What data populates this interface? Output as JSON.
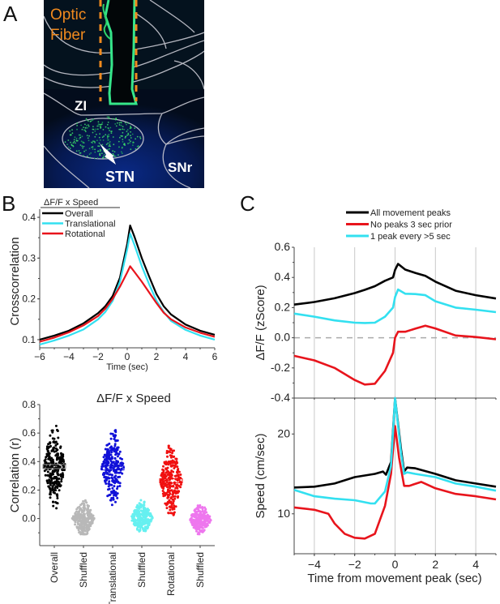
{
  "panels": {
    "A": {
      "letter": "A",
      "labels": {
        "optic_fiber_line1": "Optic",
        "optic_fiber_line2": "Fiber",
        "zi": "ZI",
        "stn": "STN",
        "snr": "SNr"
      },
      "colors": {
        "background": "#04121e",
        "fluorescence": "#2fd36b",
        "outline": "#c9c9d2",
        "fiber_outline": "#f08a1e",
        "label": "#ffffff"
      }
    },
    "B": {
      "letter": "B"
    },
    "C": {
      "letter": "C"
    }
  },
  "chart_data": [
    {
      "id": "B-crosscorrelation",
      "type": "line",
      "title": "ΔF/F  x   Speed",
      "xlabel": "Time (sec)",
      "ylabel": "Crosscorrelation",
      "xlim": [
        -6,
        6
      ],
      "ylim": [
        0.08,
        0.42
      ],
      "xticks": [
        -6,
        -4,
        -2,
        0,
        2,
        4,
        6
      ],
      "xtick_labels": [
        "−6",
        "−4",
        "−2",
        "0",
        "2",
        "4",
        "6"
      ],
      "yticks": [
        0.1,
        0.2,
        0.3,
        0.4
      ],
      "ytick_labels": [
        "0.1",
        "0.2",
        "0.3",
        "0.4"
      ],
      "legend": "top-left",
      "grid": false,
      "x": [
        -6,
        -5,
        -4,
        -3,
        -2,
        -1.5,
        -1,
        -0.5,
        0,
        0.2,
        0.5,
        1,
        1.5,
        2,
        2.5,
        3,
        4,
        5,
        6
      ],
      "series": [
        {
          "name": "Overall",
          "color": "#000000",
          "values": [
            0.1,
            0.11,
            0.122,
            0.14,
            0.165,
            0.182,
            0.207,
            0.252,
            0.335,
            0.38,
            0.352,
            0.3,
            0.255,
            0.212,
            0.182,
            0.162,
            0.137,
            0.122,
            0.112
          ]
        },
        {
          "name": "Translational",
          "color": "#33e0f0",
          "values": [
            0.088,
            0.098,
            0.11,
            0.125,
            0.15,
            0.168,
            0.195,
            0.242,
            0.322,
            0.36,
            0.332,
            0.28,
            0.236,
            0.196,
            0.168,
            0.146,
            0.124,
            0.11,
            0.1
          ]
        },
        {
          "name": "Rotational",
          "color": "#e8141c",
          "values": [
            0.095,
            0.105,
            0.118,
            0.135,
            0.158,
            0.176,
            0.2,
            0.23,
            0.265,
            0.28,
            0.266,
            0.242,
            0.216,
            0.19,
            0.166,
            0.15,
            0.13,
            0.117,
            0.107
          ]
        }
      ]
    },
    {
      "id": "B-correlation-scatter",
      "type": "scatter",
      "title": "ΔF/F  x  Speed",
      "xlabel": "",
      "ylabel": "Correlation (r)",
      "ylim": [
        -0.19,
        0.8
      ],
      "yticks": [
        0.0,
        0.2,
        0.4,
        0.6,
        0.8
      ],
      "ytick_labels": [
        "0.0",
        "0.2",
        "0.4",
        "0.6",
        "0.8"
      ],
      "grid": false,
      "categories": [
        "Overall",
        "Shuffled",
        "Translational",
        "Shuffled",
        "Rotational",
        "Shuffled"
      ],
      "series": [
        {
          "name": "Overall",
          "color": "#000000",
          "mean": 0.365,
          "min": 0.03,
          "max": 0.65,
          "n": 260
        },
        {
          "name": "Shuffled (Overall)",
          "color": "#b8b8b8",
          "mean": 0.0,
          "min": -0.11,
          "max": 0.15,
          "n": 260
        },
        {
          "name": "Translational",
          "color": "#1010d8",
          "mean": 0.355,
          "min": 0.02,
          "max": 0.62,
          "n": 260
        },
        {
          "name": "Shuffled (Translational)",
          "color": "#66f0f0",
          "mean": 0.005,
          "min": -0.1,
          "max": 0.14,
          "n": 260
        },
        {
          "name": "Rotational",
          "color": "#f01010",
          "mean": 0.265,
          "min": -0.04,
          "max": 0.51,
          "n": 260
        },
        {
          "name": "Shuffled (Rotational)",
          "color": "#ee77ee",
          "mean": -0.005,
          "min": -0.11,
          "max": 0.12,
          "n": 260
        }
      ]
    },
    {
      "id": "C-dff",
      "type": "line",
      "title": "",
      "xlabel": "",
      "ylabel": "ΔF/F (zScore)",
      "xlim": [
        -5,
        5
      ],
      "ylim": [
        -0.4,
        0.6
      ],
      "yticks": [
        -0.4,
        -0.2,
        0.0,
        0.2,
        0.4,
        0.6
      ],
      "ytick_labels": [
        "-0.4",
        "-0.2",
        "0.0",
        "0.2",
        "0.4",
        "0.6"
      ],
      "xgrid": [
        -4,
        -2,
        0,
        2,
        4
      ],
      "zero_line": true,
      "legend": "top-center",
      "x": [
        -5,
        -4,
        -3,
        -2,
        -1.5,
        -1,
        -0.5,
        -0.1,
        0,
        0.15,
        0.5,
        1,
        1.5,
        2,
        3,
        4,
        5
      ],
      "series": [
        {
          "name": "All movement peaks",
          "color": "#000000",
          "values": [
            0.22,
            0.237,
            0.262,
            0.296,
            0.318,
            0.342,
            0.378,
            0.4,
            0.45,
            0.49,
            0.452,
            0.43,
            0.41,
            0.372,
            0.312,
            0.282,
            0.26
          ]
        },
        {
          "name": "No peaks 3 sec prior",
          "color": "#e8141c",
          "values": [
            -0.12,
            -0.15,
            -0.2,
            -0.28,
            -0.31,
            -0.305,
            -0.22,
            -0.1,
            0.0,
            0.04,
            0.04,
            0.06,
            0.08,
            0.062,
            0.015,
            0.005,
            -0.01
          ]
        },
        {
          "name": "1 peak every >5 sec",
          "color": "#33e0f0",
          "values": [
            0.16,
            0.14,
            0.115,
            0.1,
            0.098,
            0.1,
            0.14,
            0.2,
            0.27,
            0.32,
            0.292,
            0.29,
            0.282,
            0.242,
            0.2,
            0.186,
            0.17
          ]
        }
      ]
    },
    {
      "id": "C-speed",
      "type": "line",
      "title": "",
      "xlabel": "Time from movement peak (sec)",
      "ylabel": "Speed (cm/sec)",
      "xlim": [
        -5,
        5
      ],
      "ylim": [
        5,
        24.5
      ],
      "xticks": [
        -4,
        -2,
        0,
        2,
        4
      ],
      "xtick_labels": [
        "−4",
        "−2",
        "0",
        "2",
        "4"
      ],
      "yticks": [
        10,
        20
      ],
      "ytick_labels": [
        "10",
        "20"
      ],
      "xgrid": [
        -4,
        -2,
        0,
        2,
        4
      ],
      "series": [
        {
          "name": "All movement peaks",
          "color": "#000000",
          "x": [
            -5,
            -4,
            -3,
            -2,
            -1,
            -0.6,
            -0.45,
            -0.2,
            0,
            0.3,
            0.45,
            0.6,
            1,
            2,
            3,
            4,
            5
          ],
          "values": [
            13.3,
            13.4,
            13.8,
            14.6,
            15.0,
            15.3,
            14.9,
            16.5,
            24.5,
            18.0,
            15.3,
            15.8,
            15.7,
            15.0,
            14.2,
            13.8,
            13.4
          ]
        },
        {
          "name": "No peaks 3 sec prior",
          "color": "#e8141c",
          "x": [
            -5,
            -4,
            -3.3,
            -3,
            -2.5,
            -2,
            -1.5,
            -1,
            -0.5,
            -0.2,
            0,
            0.2,
            0.45,
            0.7,
            1.3,
            2,
            3,
            4,
            5
          ],
          "values": [
            10.8,
            10.5,
            10.0,
            8.8,
            7.5,
            7.0,
            6.9,
            7.5,
            11.0,
            15.0,
            21.0,
            17.0,
            13.5,
            13.5,
            14.0,
            13.2,
            12.5,
            12.2,
            11.8
          ]
        },
        {
          "name": "1 peak every >5 sec",
          "color": "#33e0f0",
          "x": [
            -5,
            -4,
            -3,
            -2,
            -1.2,
            -1,
            -0.5,
            -0.2,
            0,
            0.3,
            0.45,
            0.6,
            1,
            2,
            3,
            4,
            5
          ],
          "values": [
            13.0,
            12.2,
            11.9,
            11.7,
            11.3,
            11.3,
            12.8,
            16.0,
            24.5,
            17.5,
            15.0,
            15.2,
            15.0,
            14.6,
            13.8,
            13.4,
            12.9
          ]
        }
      ]
    }
  ]
}
